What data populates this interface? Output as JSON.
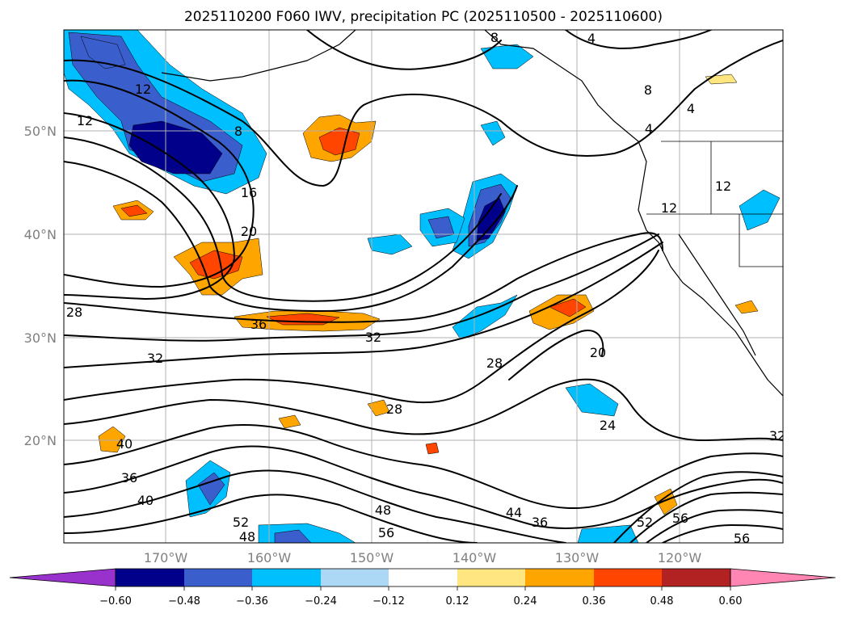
{
  "title": "2025110200 F060 IWV, precipitation PC (2025110500 - 2025110600)",
  "map": {
    "lat_labels": [
      "50°N",
      "40°N",
      "30°N",
      "20°N"
    ],
    "lon_labels": [
      "170°W",
      "160°W",
      "150°W",
      "140°W",
      "130°W",
      "120°W"
    ],
    "contour_labels": [
      "4",
      "4",
      "4",
      "8",
      "8",
      "8",
      "12",
      "12",
      "12",
      "12",
      "16",
      "20",
      "20",
      "24",
      "28",
      "28",
      "28",
      "32",
      "32",
      "32",
      "36",
      "36",
      "36",
      "40",
      "40",
      "44",
      "48",
      "48",
      "52",
      "52",
      "56",
      "56",
      "56"
    ],
    "colors": {
      "neg_060": "#9932cc",
      "neg_048": "#00008b",
      "neg_036": "#3a5fcd",
      "neg_024": "#00bfff",
      "neg_012": "#add8f5",
      "pos_012": "#ffe680",
      "pos_024": "#ffa500",
      "pos_036": "#ff4500",
      "pos_048": "#b22222",
      "pos_060": "#ff85b3"
    }
  },
  "colorbar": {
    "ticks": [
      "−0.60",
      "−0.48",
      "−0.36",
      "−0.24",
      "−0.12",
      "0.12",
      "0.24",
      "0.36",
      "0.48",
      "0.60"
    ]
  }
}
